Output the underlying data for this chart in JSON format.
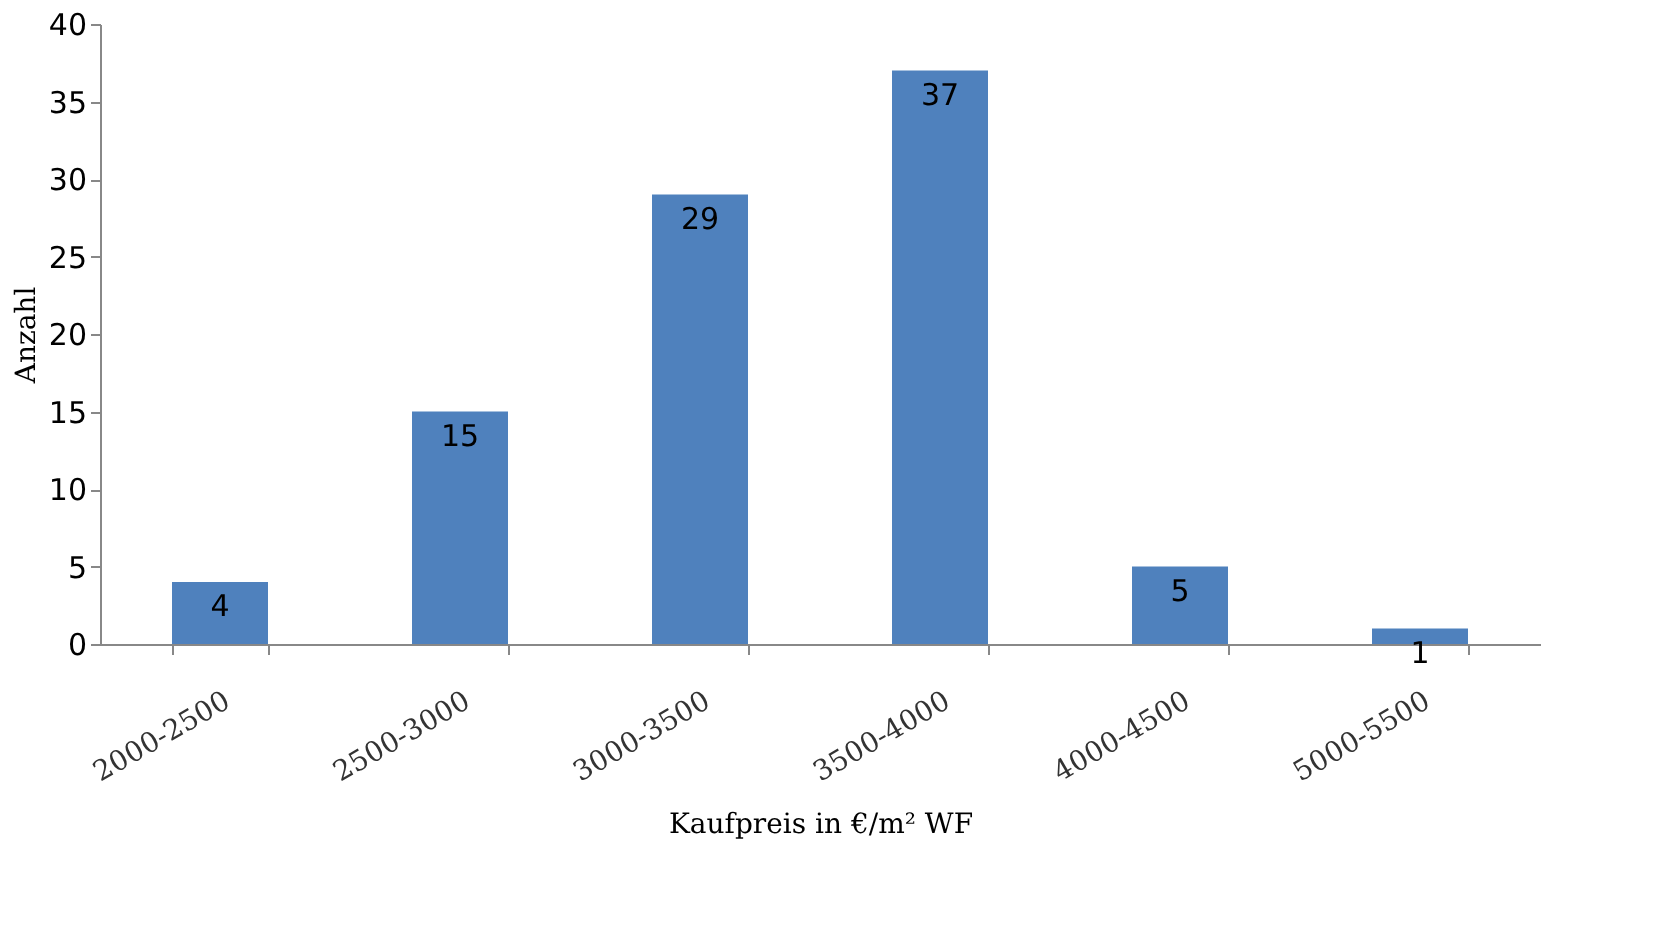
{
  "chart_data": {
    "type": "bar",
    "xlabel": "Kaufpreis in €/m² WF",
    "ylabel": "Anzahl",
    "categories": [
      "2000-2500",
      "2500-3000",
      "3000-3500",
      "3500-4000",
      "4000-4500",
      "5000-5500"
    ],
    "values": [
      4,
      15,
      29,
      37,
      5,
      1
    ],
    "color": "#4f81bd",
    "ylim": [
      0,
      40
    ],
    "yticks": [
      0,
      5,
      10,
      15,
      20,
      25,
      30,
      35,
      40
    ],
    "data_labels": true,
    "grid": false
  }
}
